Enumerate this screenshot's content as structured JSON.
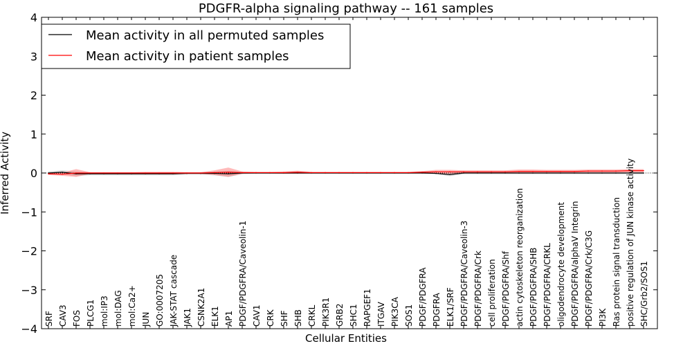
{
  "chart_data": {
    "type": "line",
    "title": "PDGFR-alpha signaling pathway -- 161 samples",
    "xlabel": "Cellular Entities",
    "ylabel": "Inferred Activity",
    "ylim": [
      -4,
      4
    ],
    "yticks": [
      -4,
      -3,
      -2,
      -1,
      0,
      1,
      2,
      3,
      4
    ],
    "ytick_labels": [
      "−4",
      "−3",
      "−2",
      "−1",
      "0",
      "1",
      "2",
      "3",
      "4"
    ],
    "legend": {
      "placement": "top-left"
    },
    "colors": {
      "permuted": "#000000",
      "patient": "#ff0000",
      "permuted_band": "#bbbbbb",
      "patient_band": "#ff6666"
    },
    "categories": [
      "SRF",
      "CAV3",
      "FOS",
      "PLCG1",
      "mol:IP3",
      "mol:DAG",
      "mol:Ca2+",
      "JUN",
      "GO:0007205",
      "JAK-STAT cascade",
      "JAK1",
      "CSNK2A1",
      "ELK1",
      "AP1",
      "PDGF/PDGFRA/Caveolin-1",
      "CAV1",
      "CRK",
      "SHF",
      "SHB",
      "CRKL",
      "PIK3R1",
      "GRB2",
      "SHC1",
      "RAPGEF1",
      "ITGAV",
      "PIK3CA",
      "SOS1",
      "PDGF/PDGFRA",
      "PDGFRA",
      "ELK1/SRF",
      "PDGF/PDGFRA/Caveolin-3",
      "PDGF/PDGFRA/Crk",
      "cell proliferation",
      "PDGF/PDGFRA/Shf",
      "actin cytoskeleton reorganization",
      "PDGF/PDGFRA/SHB",
      "PDGF/PDGFRA/CRKL",
      "oligodendrocyte development",
      "PDGF/PDGFRA/alphaV Integrin",
      "PDGF/PDGFRA/Crk/C3G",
      "PI3K",
      "Ras protein signal transduction",
      "positive regulation of JUN kinase activity",
      "SHC/Grb2/SOS1"
    ],
    "series": [
      {
        "name": "Mean activity in all permuted samples",
        "values": [
          0,
          0.02,
          -0.02,
          -0.02,
          -0.02,
          -0.02,
          -0.02,
          -0.02,
          -0.02,
          -0.02,
          -0.01,
          -0.01,
          -0.01,
          -0.02,
          0,
          0,
          0,
          0,
          0,
          0,
          0,
          0,
          0,
          0,
          0,
          0,
          0,
          0,
          -0.01,
          -0.04,
          0,
          0,
          0,
          0,
          0,
          0,
          0,
          0,
          0,
          0,
          0,
          0,
          0,
          0
        ],
        "band": [
          0.04,
          0.05,
          0.06,
          0.04,
          0.04,
          0.04,
          0.04,
          0.04,
          0.04,
          0.04,
          0.03,
          0.03,
          0.05,
          0.08,
          0.03,
          0.02,
          0.02,
          0.02,
          0.02,
          0.02,
          0.02,
          0.02,
          0.02,
          0.02,
          0.02,
          0.02,
          0.02,
          0.02,
          0.02,
          0.04,
          0.03,
          0.03,
          0.03,
          0.03,
          0.03,
          0.03,
          0.03,
          0.03,
          0.03,
          0.03,
          0.03,
          0.03,
          0.03,
          0.03
        ]
      },
      {
        "name": "Mean activity in patient samples",
        "values": [
          -0.02,
          -0.03,
          0,
          0,
          0,
          0,
          0,
          0,
          0,
          0,
          0,
          0,
          0.01,
          0.02,
          0.01,
          0.01,
          0.01,
          0.01,
          0.02,
          0.01,
          0.01,
          0.01,
          0.01,
          0.01,
          0.01,
          0.01,
          0.01,
          0.02,
          0.03,
          0.03,
          0.03,
          0.03,
          0.03,
          0.03,
          0.04,
          0.04,
          0.04,
          0.04,
          0.04,
          0.05,
          0.05,
          0.05,
          0.06,
          0.06
        ],
        "band": [
          0.03,
          0.04,
          0.1,
          0.02,
          0.02,
          0.02,
          0.02,
          0.03,
          0.03,
          0.03,
          0.02,
          0.02,
          0.06,
          0.12,
          0.03,
          0.02,
          0.02,
          0.03,
          0.04,
          0.02,
          0.02,
          0.02,
          0.02,
          0.02,
          0.02,
          0.02,
          0.02,
          0.03,
          0.05,
          0.05,
          0.04,
          0.04,
          0.04,
          0.04,
          0.05,
          0.05,
          0.04,
          0.04,
          0.04,
          0.04,
          0.04,
          0.04,
          0.04,
          0.04
        ]
      }
    ]
  }
}
